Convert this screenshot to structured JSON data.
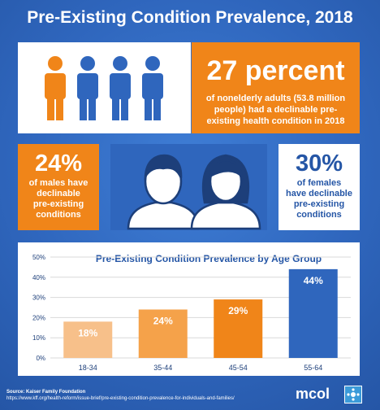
{
  "title": "Pre-Existing Condition Prevalence, 2018",
  "headline": {
    "stat": "27 percent",
    "description": "of nonelderly adults (53.8 million people) had a declinable pre-existing health condition in 2018",
    "people_icons": [
      "person-orange",
      "person-blue",
      "person-blue",
      "person-blue"
    ]
  },
  "males": {
    "stat": "24%",
    "lines": [
      "of males have",
      "declinable",
      "pre-existing",
      "conditions"
    ]
  },
  "females": {
    "stat": "30%",
    "lines": [
      "of females",
      "have declinable",
      "pre-existing",
      "conditions"
    ]
  },
  "chart_data": {
    "type": "bar",
    "title": "Pre-Existing Condition Prevalence by Age Group",
    "categories": [
      "18-34",
      "35-44",
      "45-54",
      "55-64"
    ],
    "values": [
      18,
      24,
      29,
      44
    ],
    "data_labels": [
      "18%",
      "24%",
      "29%",
      "44%"
    ],
    "bar_colors": [
      "#f7c08a",
      "#f5a24a",
      "#f08519",
      "#2f66bd"
    ],
    "ylim": [
      0,
      50
    ],
    "yticks": [
      "0%",
      "10%",
      "20%",
      "30%",
      "40%",
      "50%"
    ],
    "grid": true
  },
  "footer": {
    "source_label": "Source: Kaiser Family Foundation",
    "source_url": "https://www.kff.org/health-reform/issue-brief/pre-existing-condition-prevalence-for-individuals-and-families/",
    "logo_text": "mcol"
  },
  "colors": {
    "orange": "#f08519",
    "blue": "#2f66bd",
    "white": "#ffffff"
  }
}
